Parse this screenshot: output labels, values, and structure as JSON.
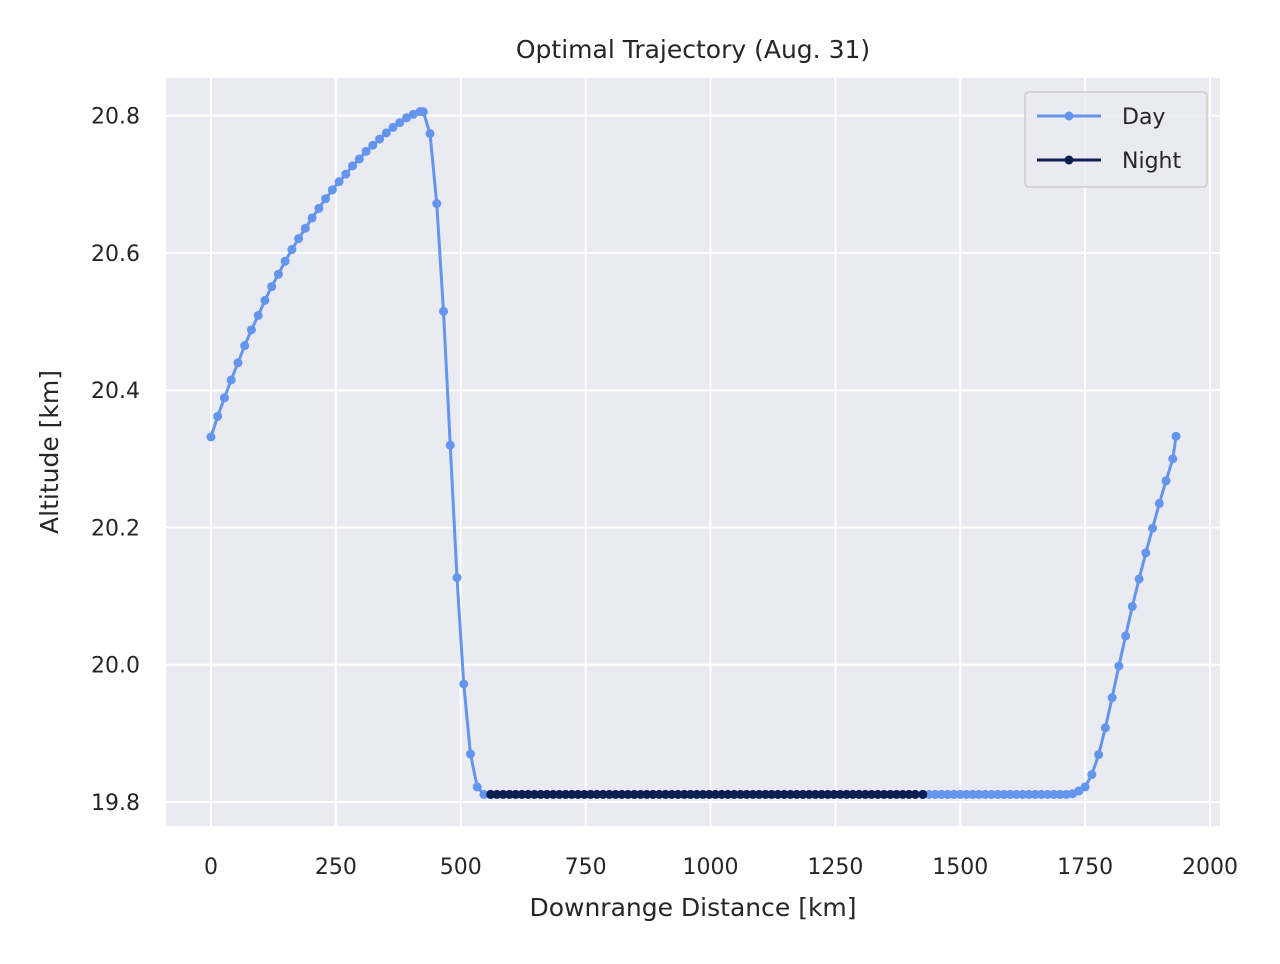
{
  "chart_data": {
    "type": "line",
    "title": "Optimal Trajectory (Aug. 31)",
    "xlabel": "Downrange Distance [km]",
    "ylabel": "Altitude [km]",
    "xlim": [
      -90,
      2020
    ],
    "ylim": [
      19.765,
      20.855
    ],
    "x_ticks": [
      0,
      250,
      500,
      750,
      1000,
      1250,
      1500,
      1750,
      2000
    ],
    "x_tick_labels": [
      "0",
      "250",
      "500",
      "750",
      "1000",
      "1250",
      "1500",
      "1750",
      "2000"
    ],
    "y_ticks": [
      19.8,
      20.0,
      20.2,
      20.4,
      20.6,
      20.8
    ],
    "y_tick_labels": [
      "19.8",
      "20.0",
      "20.2",
      "20.4",
      "20.6",
      "20.8"
    ],
    "grid": true,
    "legend_position": "top-right",
    "series": [
      {
        "name": "Day",
        "color": "#6495ED",
        "segments": [
          {
            "x": [
              0,
              13.5,
              27,
              40.5,
              54,
              67.5,
              81,
              94.5,
              108,
              121.5,
              135,
              148.5,
              162,
              175.5,
              189,
              202.5,
              216,
              229.5,
              243,
              256.5,
              270,
              283.5,
              297,
              310.5,
              324,
              337.5,
              351,
              364.5,
              378,
              391.5,
              405,
              418.5,
              425,
              438.5,
              452,
              465.5,
              479,
              492.5,
              506,
              519.5,
              533,
              546.5,
              560
            ],
            "y": [
              20.332,
              20.362,
              20.389,
              20.415,
              20.44,
              20.465,
              20.488,
              20.509,
              20.531,
              20.551,
              20.569,
              20.588,
              20.605,
              20.621,
              20.636,
              20.651,
              20.665,
              20.679,
              20.692,
              20.704,
              20.715,
              20.727,
              20.737,
              20.748,
              20.757,
              20.766,
              20.775,
              20.783,
              20.79,
              20.797,
              20.802,
              20.806,
              20.806,
              20.774,
              20.672,
              20.515,
              20.32,
              20.127,
              19.972,
              19.87,
              19.822,
              19.811,
              19.811
            ]
          },
          {
            "x": [
              1425,
              1437.5,
              1450,
              1462.5,
              1475,
              1487.5,
              1500,
              1512.5,
              1525,
              1537.5,
              1550,
              1562.5,
              1575,
              1587.5,
              1600,
              1612.5,
              1625,
              1637.5,
              1650,
              1662.5,
              1675,
              1687.5,
              1700,
              1712.5,
              1725,
              1737.5,
              1750,
              1763.5,
              1777,
              1790.5,
              1804,
              1817.5,
              1831,
              1844.5,
              1858,
              1871.5,
              1885,
              1898.5,
              1912,
              1925.5
            ],
            "y": [
              19.811,
              19.811,
              19.811,
              19.811,
              19.811,
              19.811,
              19.811,
              19.811,
              19.811,
              19.811,
              19.811,
              19.811,
              19.811,
              19.811,
              19.811,
              19.811,
              19.811,
              19.811,
              19.811,
              19.811,
              19.811,
              19.811,
              19.811,
              19.811,
              19.812,
              19.816,
              19.822,
              19.84,
              19.869,
              19.908,
              19.952,
              19.998,
              20.042,
              20.085,
              20.125,
              20.163,
              20.199,
              20.235,
              20.268,
              20.3
            ]
          }
        ]
      },
      {
        "name": "Night",
        "color": "#0A1F52",
        "segments": [
          {
            "x": [
              560,
              572.5,
              585,
              597.5,
              610,
              622.5,
              635,
              647.5,
              660,
              672.5,
              685,
              697.5,
              710,
              722.5,
              735,
              747.5,
              760,
              772.5,
              785,
              797.5,
              810,
              822.5,
              835,
              847.5,
              860,
              872.5,
              885,
              897.5,
              910,
              922.5,
              935,
              947.5,
              960,
              972.5,
              985,
              997.5,
              1010,
              1022.5,
              1035,
              1047.5,
              1060,
              1072.5,
              1085,
              1097.5,
              1110,
              1122.5,
              1135,
              1147.5,
              1160,
              1172.5,
              1185,
              1197.5,
              1210,
              1222.5,
              1235,
              1247.5,
              1260,
              1272.5,
              1285,
              1297.5,
              1310,
              1322.5,
              1335,
              1347.5,
              1360,
              1372.5,
              1385,
              1397.5,
              1410,
              1425
            ],
            "y": [
              19.811,
              19.811,
              19.811,
              19.811,
              19.811,
              19.811,
              19.811,
              19.811,
              19.811,
              19.811,
              19.811,
              19.811,
              19.811,
              19.811,
              19.811,
              19.811,
              19.811,
              19.811,
              19.811,
              19.811,
              19.811,
              19.811,
              19.811,
              19.811,
              19.811,
              19.811,
              19.811,
              19.811,
              19.811,
              19.811,
              19.811,
              19.811,
              19.811,
              19.811,
              19.811,
              19.811,
              19.811,
              19.811,
              19.811,
              19.811,
              19.811,
              19.811,
              19.811,
              19.811,
              19.811,
              19.811,
              19.811,
              19.811,
              19.811,
              19.811,
              19.811,
              19.811,
              19.811,
              19.811,
              19.811,
              19.811,
              19.811,
              19.811,
              19.811,
              19.811,
              19.811,
              19.811,
              19.811,
              19.811,
              19.811,
              19.811,
              19.811,
              19.811,
              19.811,
              19.811
            ]
          }
        ]
      }
    ],
    "last_day_point": {
      "x": 1932,
      "y": 20.333
    }
  }
}
